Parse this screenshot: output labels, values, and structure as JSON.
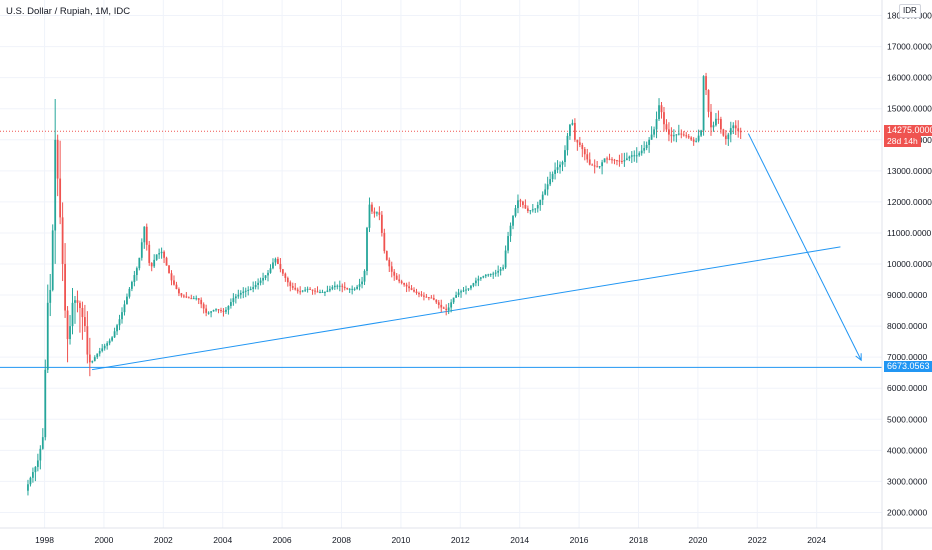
{
  "header": {
    "title": "U.S. Dollar / Rupiah, 1M, IDC",
    "currency_badge": "IDR"
  },
  "price_axis": {
    "current_price": "14275.0000",
    "countdown": "28d 14h",
    "support_price": "6673.0563"
  },
  "colors": {
    "up": "#26a69a",
    "down": "#ef5350",
    "drawing": "#2196f3",
    "current_price_line": "#ef5350",
    "grid": "#f0f3fa",
    "axis_text": "#131722"
  },
  "chart_data": {
    "type": "candlestick",
    "symbol": "USDIDR",
    "interval": "1M",
    "source": "IDC",
    "title": "U.S. Dollar / Rupiah, 1M, IDC",
    "ylim": [
      1500,
      18500
    ],
    "xlim": [
      1996.5,
      2026.2
    ],
    "y_ticks": [
      "2000.0000",
      "3000.0000",
      "4000.0000",
      "5000.0000",
      "6000.0000",
      "7000.0000",
      "8000.0000",
      "9000.0000",
      "10000.0000",
      "11000.0000",
      "12000.0000",
      "13000.0000",
      "14000.0000",
      "15000.0000",
      "16000.0000",
      "17000.0000",
      "18000.0000"
    ],
    "x_ticks": [
      "1998",
      "2000",
      "2002",
      "2004",
      "2006",
      "2008",
      "2010",
      "2012",
      "2014",
      "2016",
      "2018",
      "2020",
      "2022",
      "2024"
    ],
    "grid": true,
    "current_price": 14275.0,
    "price_path": [
      [
        1997.4,
        2700
      ],
      [
        1997.6,
        3200
      ],
      [
        1997.8,
        3600
      ],
      [
        1998.0,
        4500
      ],
      [
        1998.05,
        5400
      ],
      [
        1998.1,
        9000
      ],
      [
        1998.2,
        8500
      ],
      [
        1998.3,
        10500
      ],
      [
        1998.4,
        14000
      ],
      [
        1998.5,
        12500
      ],
      [
        1998.6,
        11000
      ],
      [
        1998.7,
        9000
      ],
      [
        1998.8,
        7500
      ],
      [
        1998.9,
        8000
      ],
      [
        1999.0,
        8900
      ],
      [
        1999.2,
        8700
      ],
      [
        1999.4,
        8000
      ],
      [
        1999.5,
        6900
      ],
      [
        1999.6,
        6800
      ],
      [
        1999.8,
        7100
      ],
      [
        2000.0,
        7300
      ],
      [
        2000.3,
        7600
      ],
      [
        2000.6,
        8300
      ],
      [
        2000.9,
        9200
      ],
      [
        2001.2,
        10000
      ],
      [
        2001.4,
        11200
      ],
      [
        2001.6,
        9800
      ],
      [
        2001.8,
        10300
      ],
      [
        2002.0,
        10400
      ],
      [
        2002.3,
        9500
      ],
      [
        2002.6,
        9000
      ],
      [
        2002.9,
        8900
      ],
      [
        2003.2,
        8900
      ],
      [
        2003.5,
        8400
      ],
      [
        2003.8,
        8550
      ],
      [
        2004.1,
        8450
      ],
      [
        2004.4,
        8900
      ],
      [
        2004.7,
        9100
      ],
      [
        2005.0,
        9200
      ],
      [
        2005.3,
        9450
      ],
      [
        2005.6,
        9750
      ],
      [
        2005.8,
        10200
      ],
      [
        2006.0,
        9800
      ],
      [
        2006.3,
        9300
      ],
      [
        2006.6,
        9100
      ],
      [
        2006.9,
        9200
      ],
      [
        2007.2,
        9100
      ],
      [
        2007.5,
        9100
      ],
      [
        2007.8,
        9300
      ],
      [
        2008.0,
        9300
      ],
      [
        2008.2,
        9200
      ],
      [
        2008.5,
        9200
      ],
      [
        2008.8,
        9500
      ],
      [
        2008.95,
        12000
      ],
      [
        2009.1,
        11600
      ],
      [
        2009.3,
        11700
      ],
      [
        2009.5,
        10300
      ],
      [
        2009.7,
        9800
      ],
      [
        2009.9,
        9500
      ],
      [
        2010.2,
        9300
      ],
      [
        2010.5,
        9100
      ],
      [
        2010.8,
        8950
      ],
      [
        2011.1,
        8900
      ],
      [
        2011.4,
        8600
      ],
      [
        2011.6,
        8500
      ],
      [
        2011.8,
        8900
      ],
      [
        2012.0,
        9100
      ],
      [
        2012.3,
        9200
      ],
      [
        2012.6,
        9500
      ],
      [
        2012.9,
        9650
      ],
      [
        2013.2,
        9700
      ],
      [
        2013.5,
        9900
      ],
      [
        2013.6,
        10700
      ],
      [
        2013.8,
        11500
      ],
      [
        2014.0,
        12100
      ],
      [
        2014.3,
        11700
      ],
      [
        2014.6,
        11800
      ],
      [
        2014.9,
        12400
      ],
      [
        2015.2,
        13000
      ],
      [
        2015.5,
        13300
      ],
      [
        2015.7,
        14400
      ],
      [
        2015.8,
        14650
      ],
      [
        2015.9,
        14000
      ],
      [
        2016.1,
        13800
      ],
      [
        2016.4,
        13200
      ],
      [
        2016.7,
        13100
      ],
      [
        2016.9,
        13400
      ],
      [
        2017.2,
        13350
      ],
      [
        2017.5,
        13300
      ],
      [
        2017.8,
        13500
      ],
      [
        2018.0,
        13500
      ],
      [
        2018.3,
        13800
      ],
      [
        2018.6,
        14400
      ],
      [
        2018.75,
        15200
      ],
      [
        2018.9,
        14500
      ],
      [
        2019.1,
        14100
      ],
      [
        2019.4,
        14200
      ],
      [
        2019.7,
        14100
      ],
      [
        2019.95,
        13900
      ],
      [
        2020.15,
        14300
      ],
      [
        2020.25,
        16400
      ],
      [
        2020.35,
        15200
      ],
      [
        2020.5,
        14300
      ],
      [
        2020.7,
        14800
      ],
      [
        2020.85,
        14200
      ],
      [
        2021.0,
        14000
      ],
      [
        2021.2,
        14500
      ],
      [
        2021.4,
        14275
      ]
    ],
    "drawings": {
      "horizontal_support": 6673.0563,
      "trendline": {
        "from": [
          1999.6,
          6600
        ],
        "to": [
          2024.8,
          10550
        ]
      },
      "projection_arrow": {
        "from": [
          2021.7,
          14200
        ],
        "to": [
          2025.5,
          6900
        ]
      }
    }
  }
}
